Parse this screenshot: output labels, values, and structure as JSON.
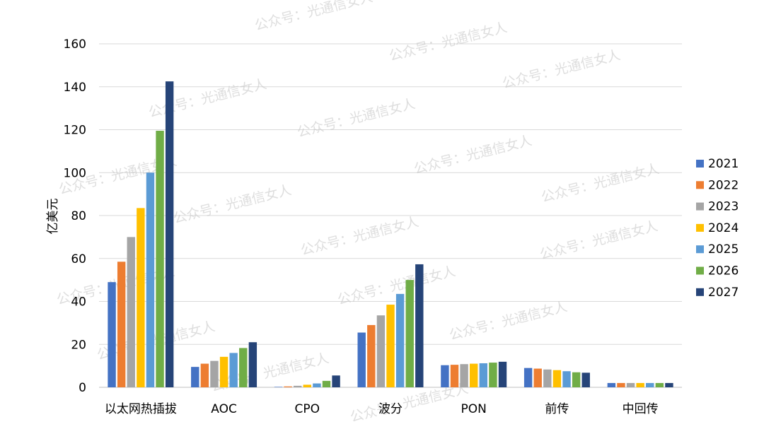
{
  "watermark": "公众号：光通信女人",
  "chart_data": {
    "type": "bar",
    "title": "",
    "xlabel": "",
    "ylabel": "亿美元",
    "ylim": [
      0,
      160
    ],
    "yticks": [
      0,
      20,
      40,
      60,
      80,
      100,
      120,
      140,
      160
    ],
    "grid": true,
    "legend_position": "right",
    "categories": [
      "以太网热插拔",
      "AOC",
      "CPO",
      "波分",
      "PON",
      "前传",
      "中回传"
    ],
    "series": [
      {
        "name": "2021",
        "color": "#4472c4",
        "values": [
          49,
          9.5,
          0.2,
          25.5,
          10.3,
          9,
          2
        ]
      },
      {
        "name": "2022",
        "color": "#ed7d31",
        "values": [
          58.5,
          11,
          0.4,
          29,
          10.5,
          8.7,
          2
        ]
      },
      {
        "name": "2023",
        "color": "#a5a5a5",
        "values": [
          70,
          12.3,
          0.7,
          33.5,
          10.8,
          8.3,
          2
        ]
      },
      {
        "name": "2024",
        "color": "#ffc000",
        "values": [
          83.5,
          14.2,
          1.2,
          38.5,
          11,
          8,
          2
        ]
      },
      {
        "name": "2025",
        "color": "#5b9bd5",
        "values": [
          100,
          16,
          1.8,
          43.5,
          11.2,
          7.5,
          2
        ]
      },
      {
        "name": "2026",
        "color": "#70ad47",
        "values": [
          119.5,
          18.3,
          3,
          50,
          11.5,
          7,
          2
        ]
      },
      {
        "name": "2027",
        "color": "#264478",
        "values": [
          142.5,
          21,
          5.5,
          57.3,
          11.9,
          6.8,
          2
        ]
      }
    ]
  }
}
